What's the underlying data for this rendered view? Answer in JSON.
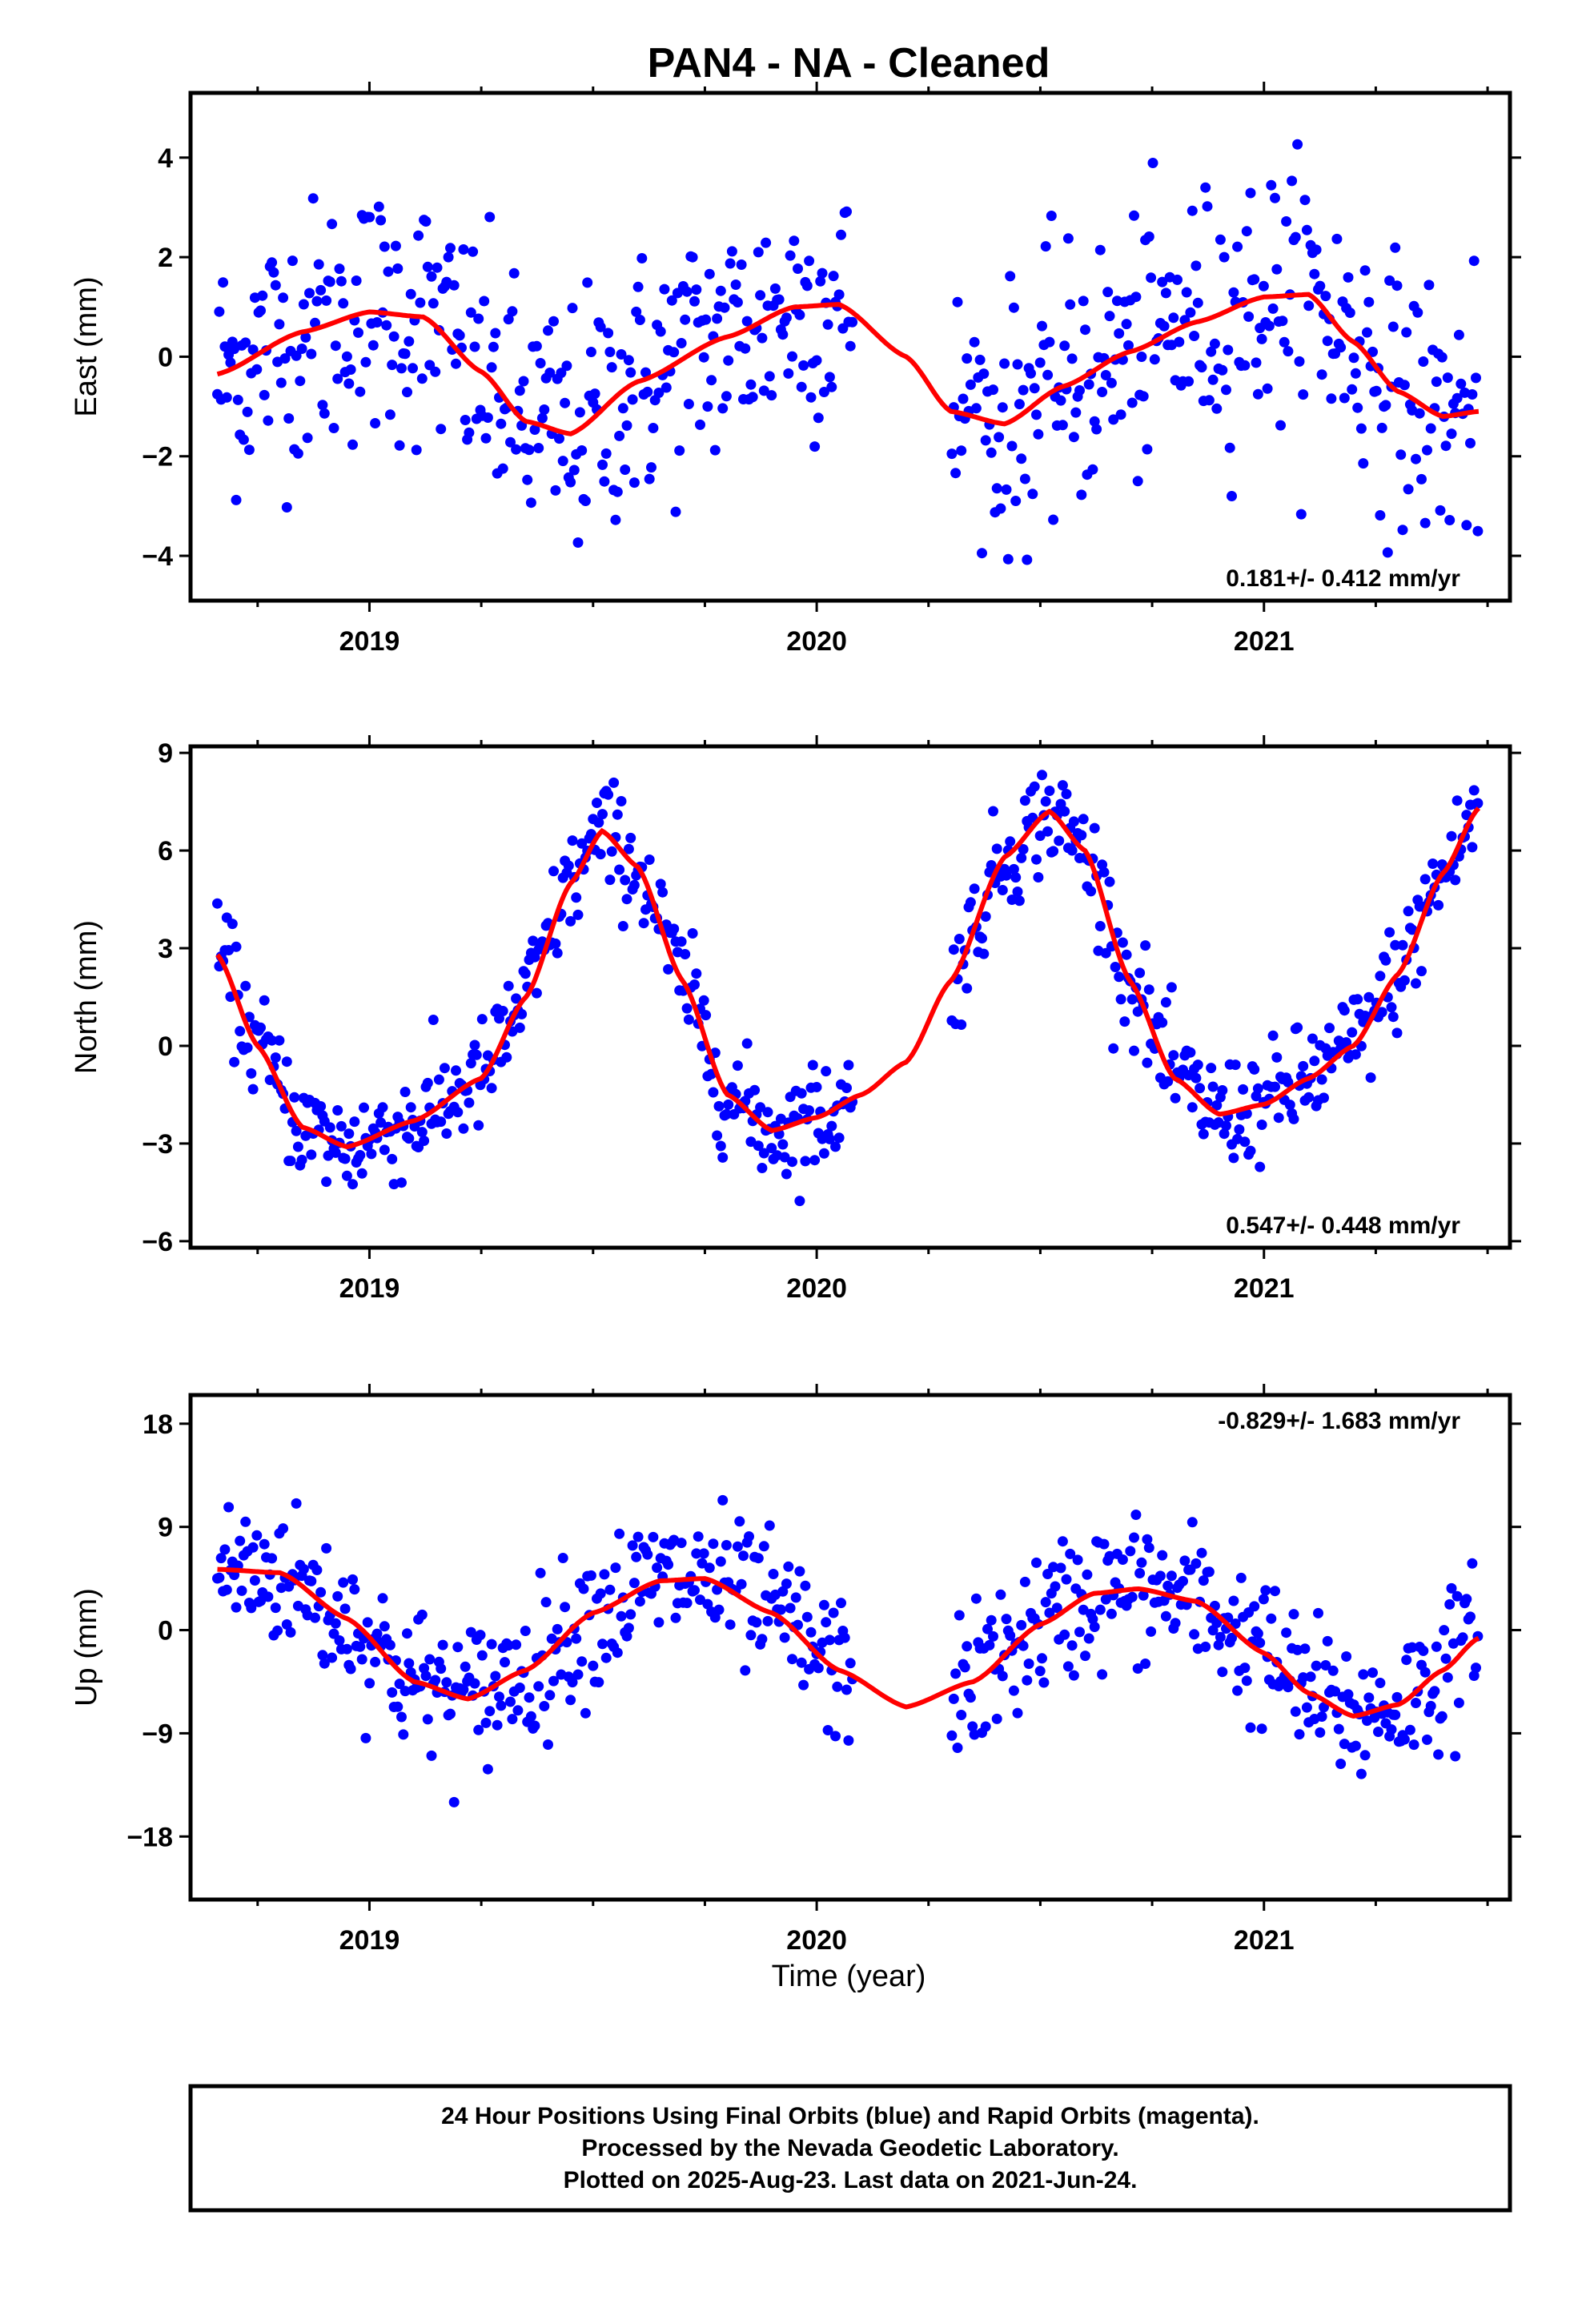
{
  "title": "PAN4  - NA - Cleaned",
  "colors": {
    "final_orbits": "#0000ff",
    "model_fit": "#ff0000",
    "frame": "#000000"
  },
  "x_axis": {
    "label": "Time (year)",
    "range": [
      2018.6,
      2021.55
    ],
    "ticks": [
      2019,
      2020,
      2021
    ],
    "minor_ticks": [
      2018.75,
      2019.25,
      2019.5,
      2019.75,
      2020.25,
      2020.5,
      2020.75,
      2021.25,
      2021.5
    ]
  },
  "chart_data": [
    {
      "type": "scatter",
      "id": "east",
      "ylabel": "East (mm)",
      "ylim": [
        -4.9,
        5.3
      ],
      "yticks": [
        -4,
        -2,
        0,
        2,
        4
      ],
      "yticklabels": [
        "−4",
        "−2",
        "0",
        "2",
        "4"
      ],
      "rate": "0.181+/- 0.412 mm/yr",
      "rate_position": "bottom-right",
      "data_range": [
        2018.66,
        2021.48
      ],
      "gap": [
        2020.08,
        2020.3
      ],
      "scatter": 1.3,
      "model_x": [
        2018.66,
        2018.85,
        2019.0,
        2019.12,
        2019.25,
        2019.35,
        2019.45,
        2019.6,
        2019.8,
        2019.95,
        2020.05,
        2020.2,
        2020.3,
        2020.42,
        2020.55,
        2020.7,
        2020.85,
        2021.0,
        2021.1,
        2021.2,
        2021.3,
        2021.4,
        2021.48
      ],
      "model_y": [
        -0.35,
        0.5,
        0.9,
        0.8,
        -0.3,
        -1.3,
        -1.55,
        -0.5,
        0.4,
        1.0,
        1.05,
        0.0,
        -1.1,
        -1.35,
        -0.6,
        0.1,
        0.7,
        1.2,
        1.25,
        0.3,
        -0.7,
        -1.2,
        -1.1
      ]
    },
    {
      "type": "scatter",
      "id": "north",
      "ylabel": "North (mm)",
      "ylim": [
        -6.2,
        9.2
      ],
      "yticks": [
        -6,
        -3,
        0,
        3,
        6,
        9
      ],
      "yticklabels": [
        "−6",
        "−3",
        "0",
        "3",
        "6",
        "9"
      ],
      "rate": "0.547+/- 0.448 mm/yr",
      "rate_position": "bottom-right",
      "data_range": [
        2018.66,
        2021.48
      ],
      "gap": [
        2020.08,
        2020.3
      ],
      "scatter": 0.85,
      "model_x": [
        2018.66,
        2018.75,
        2018.85,
        2018.95,
        2019.1,
        2019.25,
        2019.35,
        2019.45,
        2019.52,
        2019.6,
        2019.7,
        2019.8,
        2019.9,
        2020.0,
        2020.1,
        2020.2,
        2020.3,
        2020.42,
        2020.52,
        2020.6,
        2020.7,
        2020.8,
        2020.9,
        2021.0,
        2021.1,
        2021.2,
        2021.3,
        2021.4,
        2021.48
      ],
      "model_y": [
        2.8,
        0.0,
        -2.5,
        -3.1,
        -2.3,
        -1.0,
        1.5,
        5.0,
        6.6,
        5.5,
        2.0,
        -1.5,
        -2.6,
        -2.2,
        -1.5,
        -0.5,
        2.0,
        5.8,
        7.2,
        6.0,
        2.0,
        -1.0,
        -2.1,
        -1.8,
        -1.0,
        0.0,
        2.2,
        5.3,
        7.3
      ]
    },
    {
      "type": "scatter",
      "id": "up",
      "ylabel": "Up (mm)",
      "ylim": [
        -23.5,
        20.5
      ],
      "yticks": [
        -18,
        -9,
        0,
        9,
        18
      ],
      "yticklabels": [
        "−18",
        "−9",
        "0",
        "9",
        "18"
      ],
      "rate": "-0.829+/- 1.683 mm/yr",
      "rate_position": "top-right",
      "data_range": [
        2018.66,
        2021.48
      ],
      "gap": [
        2020.08,
        2020.3
      ],
      "scatter": 3.2,
      "model_x": [
        2018.66,
        2018.8,
        2018.95,
        2019.1,
        2019.22,
        2019.35,
        2019.5,
        2019.65,
        2019.75,
        2019.9,
        2020.05,
        2020.2,
        2020.35,
        2020.5,
        2020.62,
        2020.72,
        2020.85,
        2021.0,
        2021.1,
        2021.2,
        2021.3,
        2021.4,
        2021.48
      ],
      "model_y": [
        5.3,
        5.0,
        1.0,
        -4.5,
        -6.0,
        -3.5,
        1.5,
        4.3,
        4.5,
        1.5,
        -3.5,
        -6.7,
        -4.5,
        0.5,
        3.2,
        3.6,
        2.5,
        -2.0,
        -5.5,
        -7.5,
        -6.5,
        -3.5,
        -0.7
      ]
    }
  ],
  "footer": {
    "lines": [
      "24 Hour Positions Using Final Orbits (blue) and Rapid Orbits (magenta).",
      "Processed by the Nevada Geodetic Laboratory.",
      "Plotted on 2025-Aug-23. Last data on 2021-Jun-24."
    ]
  }
}
